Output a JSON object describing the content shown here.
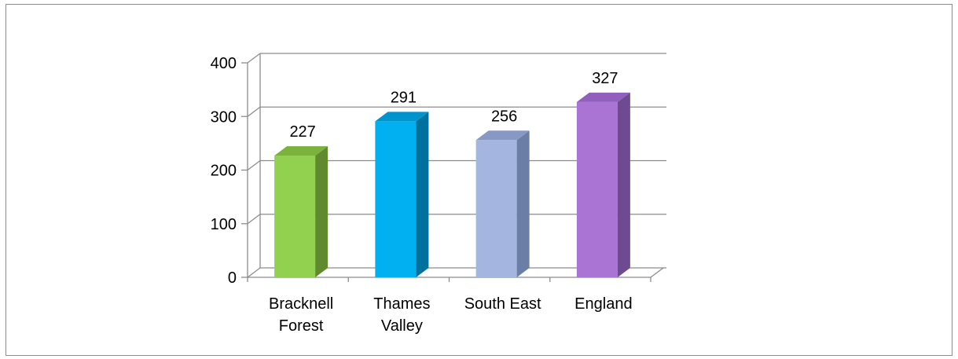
{
  "chart_data": {
    "type": "bar",
    "style": "3d-column",
    "categories": [
      [
        "Bracknell",
        "Forest"
      ],
      [
        "Thames",
        "Valley"
      ],
      [
        "South East"
      ],
      [
        "England"
      ]
    ],
    "values": [
      227,
      291,
      256,
      327
    ],
    "data_labels": [
      "227",
      "291",
      "256",
      "327"
    ],
    "ylim": [
      0,
      400
    ],
    "yticks": [
      "0",
      "100",
      "200",
      "300",
      "400"
    ],
    "grid": true,
    "legend": "none",
    "colors": [
      {
        "front": "#92d050",
        "side": "#5f8a2e",
        "top": "#7ab23c"
      },
      {
        "front": "#00b0f0",
        "side": "#00719c",
        "top": "#0094cc"
      },
      {
        "front": "#a4b6e0",
        "side": "#6b7fa6",
        "top": "#8898c4"
      },
      {
        "front": "#a974d4",
        "side": "#6e4a91",
        "top": "#9060bc"
      }
    ]
  }
}
